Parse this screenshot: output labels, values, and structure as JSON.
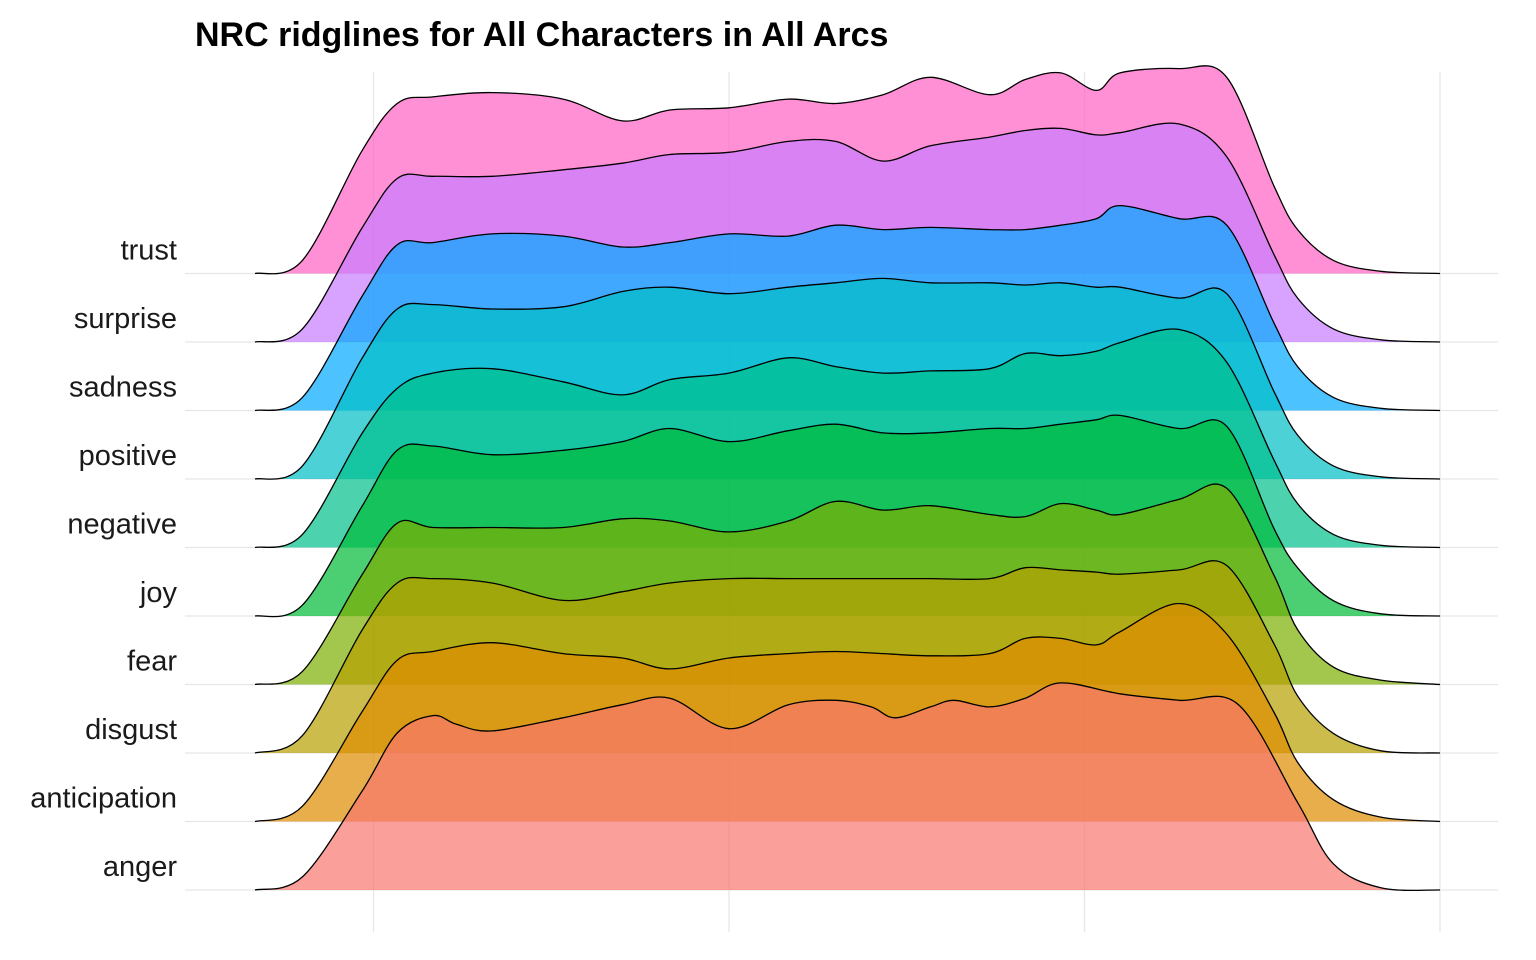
{
  "chart_data": {
    "type": "ridgeline",
    "title": "NRC ridglines for All Characters in All Arcs",
    "xlabel": "",
    "ylabel": "",
    "grid": true,
    "legend": "none",
    "x_tick_labels": [],
    "x_range": [
      0,
      1
    ],
    "x_vertical_gridlines": [
      0.1,
      0.4,
      0.7,
      1.0
    ],
    "series": [
      {
        "name": "anger",
        "color": "#F8766D",
        "x": [
          0.0,
          0.04,
          0.09,
          0.12,
          0.15,
          0.17,
          0.2,
          0.26,
          0.31,
          0.35,
          0.4,
          0.45,
          0.49,
          0.52,
          0.54,
          0.57,
          0.59,
          0.62,
          0.65,
          0.68,
          0.73,
          0.78,
          0.83,
          0.88,
          0.91,
          0.95,
          1.0
        ],
        "density": [
          0.0,
          0.06,
          0.45,
          0.72,
          0.8,
          0.76,
          0.73,
          0.79,
          0.85,
          0.88,
          0.74,
          0.85,
          0.87,
          0.84,
          0.79,
          0.84,
          0.87,
          0.84,
          0.88,
          0.95,
          0.9,
          0.87,
          0.85,
          0.4,
          0.12,
          0.01,
          0.0
        ]
      },
      {
        "name": "anticipation",
        "color": "#DE8C00",
        "x": [
          0.0,
          0.04,
          0.09,
          0.12,
          0.15,
          0.2,
          0.26,
          0.31,
          0.35,
          0.4,
          0.45,
          0.49,
          0.53,
          0.57,
          0.62,
          0.65,
          0.68,
          0.71,
          0.73,
          0.78,
          0.82,
          0.86,
          0.88,
          0.91,
          0.95,
          1.0
        ],
        "density": [
          0.0,
          0.07,
          0.5,
          0.74,
          0.78,
          0.82,
          0.77,
          0.75,
          0.7,
          0.75,
          0.77,
          0.78,
          0.77,
          0.76,
          0.77,
          0.84,
          0.84,
          0.81,
          0.87,
          1.0,
          0.86,
          0.5,
          0.27,
          0.1,
          0.02,
          0.0
        ]
      },
      {
        "name": "disgust",
        "color": "#B79F00",
        "x": [
          0.0,
          0.04,
          0.09,
          0.12,
          0.15,
          0.2,
          0.26,
          0.31,
          0.35,
          0.4,
          0.45,
          0.49,
          0.53,
          0.57,
          0.62,
          0.65,
          0.68,
          0.71,
          0.73,
          0.78,
          0.82,
          0.86,
          0.88,
          0.91,
          0.95,
          1.0
        ],
        "density": [
          0.0,
          0.08,
          0.56,
          0.78,
          0.8,
          0.78,
          0.7,
          0.74,
          0.78,
          0.8,
          0.8,
          0.8,
          0.8,
          0.8,
          0.8,
          0.85,
          0.84,
          0.83,
          0.82,
          0.84,
          0.86,
          0.5,
          0.26,
          0.09,
          0.01,
          0.0
        ]
      },
      {
        "name": "fear",
        "color": "#7CAE00",
        "x": [
          0.0,
          0.04,
          0.09,
          0.12,
          0.15,
          0.2,
          0.26,
          0.31,
          0.35,
          0.4,
          0.45,
          0.49,
          0.53,
          0.57,
          0.62,
          0.65,
          0.68,
          0.71,
          0.73,
          0.78,
          0.82,
          0.86,
          0.88,
          0.91,
          0.95,
          1.0
        ],
        "density": [
          0.0,
          0.06,
          0.5,
          0.74,
          0.72,
          0.72,
          0.72,
          0.76,
          0.75,
          0.7,
          0.75,
          0.84,
          0.8,
          0.82,
          0.78,
          0.77,
          0.83,
          0.8,
          0.78,
          0.85,
          0.9,
          0.5,
          0.25,
          0.08,
          0.02,
          0.0
        ]
      },
      {
        "name": "joy",
        "color": "#00BA38",
        "x": [
          0.0,
          0.04,
          0.09,
          0.12,
          0.15,
          0.2,
          0.26,
          0.31,
          0.35,
          0.4,
          0.45,
          0.49,
          0.53,
          0.57,
          0.62,
          0.65,
          0.68,
          0.71,
          0.73,
          0.78,
          0.82,
          0.86,
          0.88,
          0.91,
          0.95,
          1.0
        ],
        "density": [
          0.0,
          0.05,
          0.5,
          0.76,
          0.78,
          0.74,
          0.76,
          0.8,
          0.86,
          0.8,
          0.85,
          0.88,
          0.84,
          0.84,
          0.86,
          0.86,
          0.88,
          0.9,
          0.92,
          0.86,
          0.87,
          0.4,
          0.22,
          0.07,
          0.01,
          0.0
        ]
      },
      {
        "name": "negative",
        "color": "#00C08B",
        "x": [
          0.0,
          0.04,
          0.09,
          0.12,
          0.15,
          0.2,
          0.26,
          0.31,
          0.35,
          0.4,
          0.45,
          0.49,
          0.53,
          0.57,
          0.62,
          0.65,
          0.68,
          0.71,
          0.73,
          0.78,
          0.82,
          0.86,
          0.88,
          0.91,
          0.95,
          1.0
        ],
        "density": [
          0.0,
          0.06,
          0.52,
          0.73,
          0.8,
          0.82,
          0.76,
          0.7,
          0.77,
          0.8,
          0.87,
          0.83,
          0.8,
          0.81,
          0.82,
          0.89,
          0.88,
          0.9,
          0.94,
          1.0,
          0.85,
          0.4,
          0.2,
          0.06,
          0.01,
          0.0
        ]
      },
      {
        "name": "positive",
        "color": "#00BFC4",
        "x": [
          0.0,
          0.04,
          0.09,
          0.12,
          0.15,
          0.2,
          0.26,
          0.31,
          0.35,
          0.4,
          0.45,
          0.49,
          0.53,
          0.57,
          0.62,
          0.65,
          0.68,
          0.71,
          0.73,
          0.78,
          0.82,
          0.86,
          0.88,
          0.91,
          0.95,
          1.0
        ],
        "density": [
          0.0,
          0.06,
          0.55,
          0.78,
          0.8,
          0.78,
          0.79,
          0.86,
          0.88,
          0.85,
          0.88,
          0.9,
          0.92,
          0.9,
          0.9,
          0.89,
          0.9,
          0.88,
          0.88,
          0.83,
          0.85,
          0.4,
          0.2,
          0.06,
          0.01,
          0.0
        ]
      },
      {
        "name": "sadness",
        "color": "#00A9FF",
        "x": [
          0.0,
          0.04,
          0.09,
          0.12,
          0.15,
          0.2,
          0.26,
          0.31,
          0.35,
          0.4,
          0.45,
          0.49,
          0.53,
          0.57,
          0.62,
          0.65,
          0.68,
          0.71,
          0.73,
          0.78,
          0.82,
          0.86,
          0.88,
          0.91,
          0.95,
          1.0
        ],
        "density": [
          0.0,
          0.06,
          0.52,
          0.76,
          0.77,
          0.81,
          0.8,
          0.75,
          0.77,
          0.81,
          0.8,
          0.85,
          0.83,
          0.84,
          0.83,
          0.83,
          0.85,
          0.88,
          0.94,
          0.88,
          0.85,
          0.4,
          0.2,
          0.06,
          0.01,
          0.0
        ]
      },
      {
        "name": "surprise",
        "color": "#C77CFF",
        "x": [
          0.0,
          0.04,
          0.09,
          0.12,
          0.15,
          0.2,
          0.26,
          0.31,
          0.35,
          0.4,
          0.45,
          0.49,
          0.53,
          0.57,
          0.62,
          0.65,
          0.68,
          0.71,
          0.73,
          0.78,
          0.82,
          0.86,
          0.88,
          0.91,
          0.95,
          1.0
        ],
        "density": [
          0.0,
          0.06,
          0.52,
          0.75,
          0.76,
          0.76,
          0.79,
          0.82,
          0.86,
          0.87,
          0.92,
          0.92,
          0.83,
          0.9,
          0.94,
          0.97,
          0.98,
          0.95,
          0.96,
          1.0,
          0.85,
          0.4,
          0.2,
          0.06,
          0.01,
          0.0
        ]
      },
      {
        "name": "trust",
        "color": "#FF61C3",
        "x": [
          0.0,
          0.04,
          0.09,
          0.12,
          0.15,
          0.2,
          0.26,
          0.31,
          0.35,
          0.4,
          0.45,
          0.49,
          0.53,
          0.57,
          0.62,
          0.65,
          0.68,
          0.71,
          0.73,
          0.78,
          0.82,
          0.86,
          0.88,
          0.91,
          0.95,
          1.0
        ],
        "density": [
          0.0,
          0.06,
          0.56,
          0.78,
          0.81,
          0.83,
          0.8,
          0.7,
          0.75,
          0.76,
          0.8,
          0.78,
          0.82,
          0.9,
          0.82,
          0.89,
          0.92,
          0.84,
          0.92,
          0.94,
          0.9,
          0.4,
          0.2,
          0.06,
          0.01,
          0.0
        ]
      }
    ]
  }
}
